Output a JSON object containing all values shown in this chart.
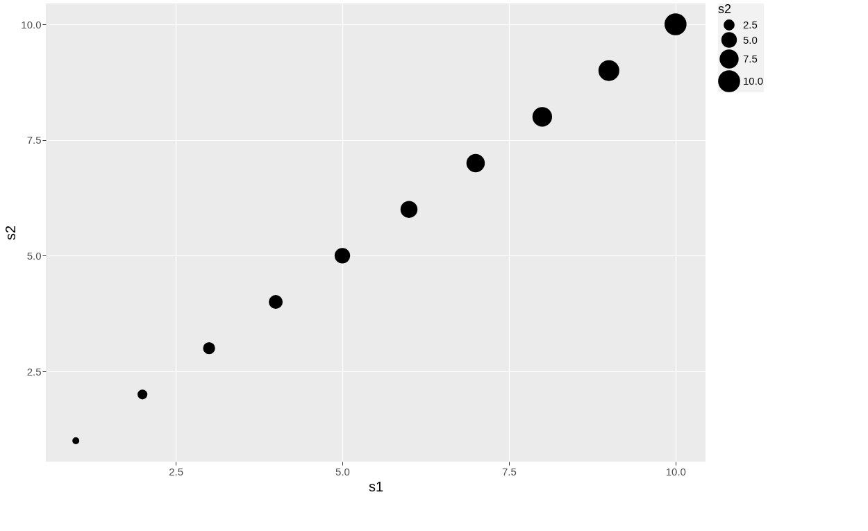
{
  "chart_data": {
    "type": "bubble",
    "xlabel": "s1",
    "ylabel": "s2",
    "legend_title": "s2",
    "x": [
      1,
      2,
      3,
      4,
      5,
      6,
      7,
      8,
      9,
      10
    ],
    "values": [
      1,
      2,
      3,
      4,
      5,
      6,
      7,
      8,
      9,
      10
    ],
    "sizes": [
      1,
      2,
      3,
      4,
      5,
      6,
      7,
      8,
      9,
      10
    ],
    "size_legend": [
      2.5,
      {
        "value": 5,
        "label": "5.0"
      },
      7.5,
      {
        "value": 10,
        "label": "10.0"
      }
    ],
    "color": "#000000",
    "xlim": [
      0.55,
      10.45
    ],
    "ylim": [
      0.55,
      10.45
    ],
    "xticks": [
      2.5,
      {
        "value": 5,
        "label": "5.0"
      },
      7.5,
      {
        "value": 10,
        "label": "10.0"
      }
    ],
    "yticks": [
      2.5,
      {
        "value": 5,
        "label": "5.0"
      },
      7.5,
      {
        "value": 10,
        "label": "10.0"
      }
    ],
    "grid": true
  }
}
